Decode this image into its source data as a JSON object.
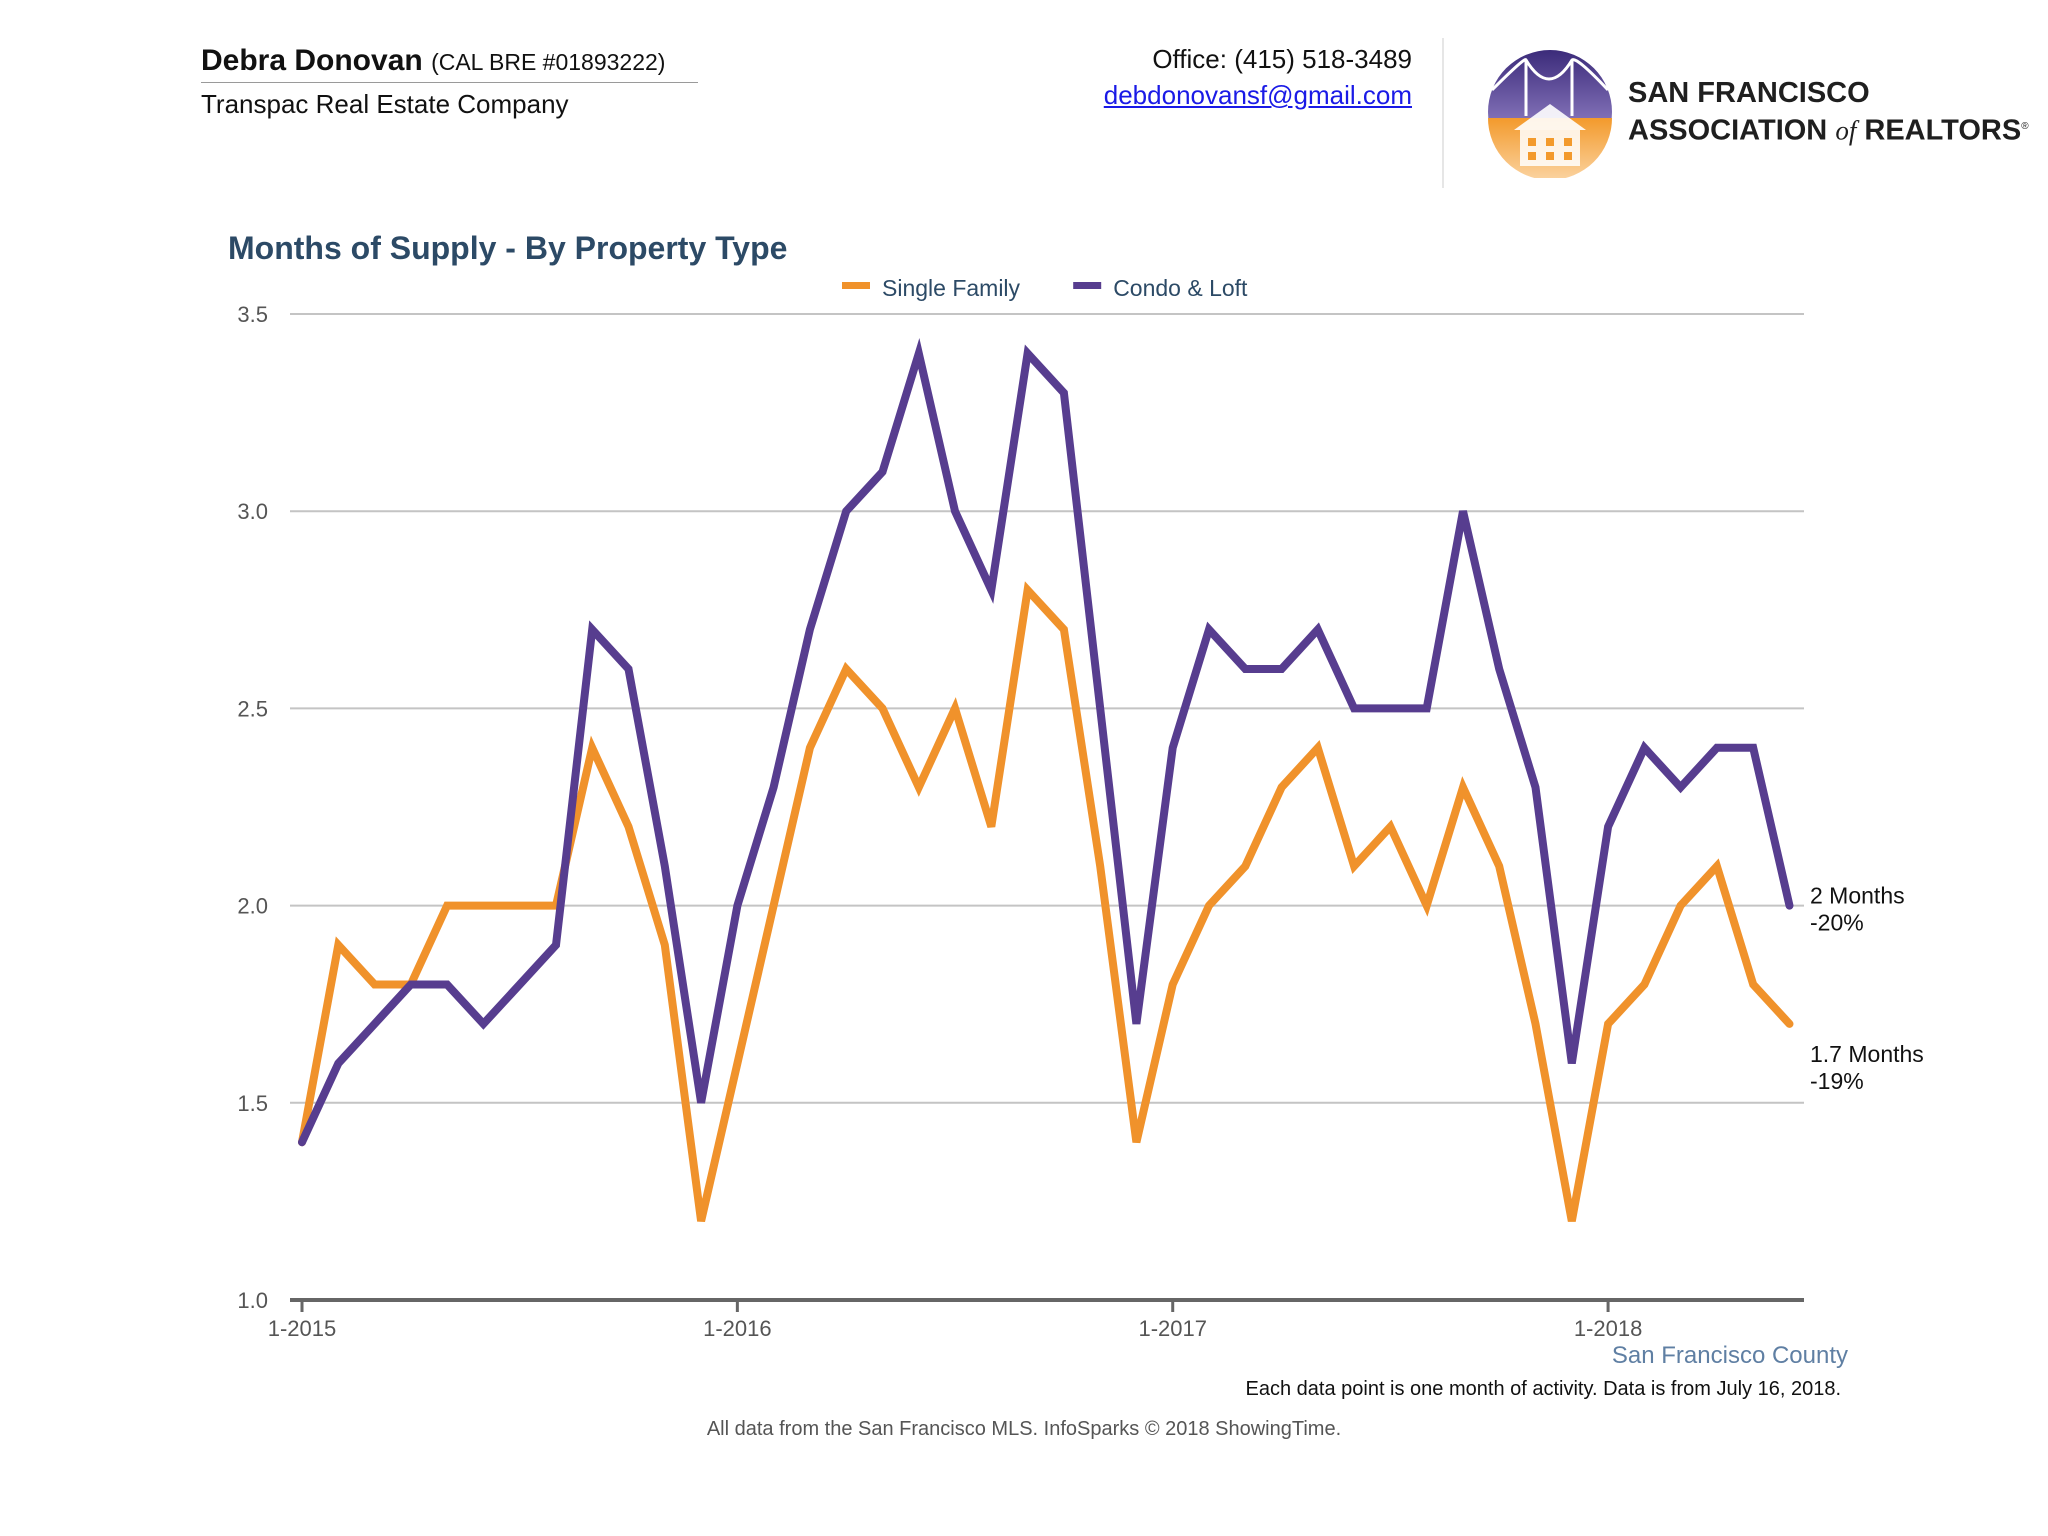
{
  "header": {
    "agent_name": "Debra Donovan",
    "agent_license": "(CAL BRE #01893222)",
    "company": "Transpac Real Estate Company",
    "office": "Office: (415) 518-3489",
    "email": "debdonovansf@gmail.com",
    "logo_line1": "SAN FRANCISCO",
    "logo_line2_a": "ASSOCIATION",
    "logo_line2_of": "of",
    "logo_line2_b": "REALTORS",
    "logo_reg": "®",
    "logo_icon": "golden-gate-house-logo"
  },
  "chart_data": {
    "type": "line",
    "title": "Months of Supply - By Property Type",
    "x_start": "2015-01",
    "x_ticks": [
      "1-2015",
      "1-2016",
      "1-2017",
      "1-2018"
    ],
    "y_ticks": [
      "1.0",
      "1.5",
      "2.0",
      "2.5",
      "3.0",
      "3.5"
    ],
    "ylim": [
      1.0,
      3.5
    ],
    "grid": true,
    "legend_position": "top-center",
    "series": [
      {
        "name": "Single Family",
        "color": "#f0922b",
        "values": [
          1.4,
          1.9,
          1.8,
          1.8,
          2.0,
          2.0,
          2.0,
          2.0,
          2.4,
          2.2,
          1.9,
          1.2,
          1.6,
          2.0,
          2.4,
          2.6,
          2.5,
          2.3,
          2.5,
          2.2,
          2.8,
          2.7,
          2.1,
          1.4,
          1.8,
          2.0,
          2.1,
          2.3,
          2.4,
          2.1,
          2.2,
          2.0,
          2.3,
          2.1,
          1.7,
          1.2,
          1.7,
          1.8,
          2.0,
          2.1,
          1.8,
          1.7
        ],
        "end_label_value": "1.7 Months",
        "end_label_change": "-19%"
      },
      {
        "name": "Condo & Loft",
        "color": "#573d8f",
        "values": [
          1.4,
          1.6,
          1.7,
          1.8,
          1.8,
          1.7,
          1.8,
          1.9,
          2.7,
          2.6,
          2.1,
          1.5,
          2.0,
          2.3,
          2.7,
          3.0,
          3.1,
          3.4,
          3.0,
          2.8,
          3.4,
          3.3,
          2.5,
          1.7,
          2.4,
          2.7,
          2.6,
          2.6,
          2.7,
          2.5,
          2.5,
          2.5,
          3.0,
          2.6,
          2.3,
          1.6,
          2.2,
          2.4,
          2.3,
          2.4,
          2.4,
          2.0
        ],
        "end_label_value": "2 Months",
        "end_label_change": "-20%"
      }
    ]
  },
  "footer": {
    "county": "San Francisco County",
    "note": "Each data point is one month of activity. Data is from July 16, 2018.",
    "source": "All data from the San Francisco MLS. InfoSparks © 2018 ShowingTime."
  }
}
